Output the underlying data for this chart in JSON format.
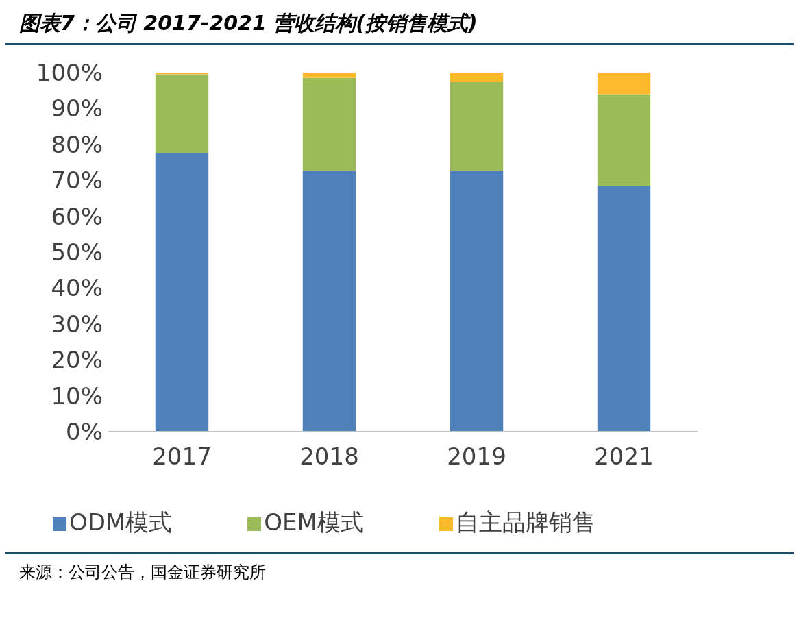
{
  "chart_data": {
    "type": "bar",
    "title": "图表7：公司 2017-2021 营收结构(按销售模式)",
    "categories": [
      "2017",
      "2018",
      "2019",
      "2021"
    ],
    "stacked": true,
    "series": [
      {
        "name": "ODM模式",
        "color": "#4f81bd",
        "values": [
          77.5,
          72.5,
          72.5,
          68.5
        ]
      },
      {
        "name": "OEM模式",
        "color": "#9bbb59",
        "values": [
          22,
          26,
          25,
          25.5
        ]
      },
      {
        "name": "自主品牌销售",
        "color": "#fdb92c",
        "values": [
          0.5,
          1.5,
          2.5,
          6
        ]
      }
    ],
    "ylim": [
      0,
      100
    ],
    "yticks": [
      {
        "value": 0,
        "label": "0%"
      },
      {
        "value": 10,
        "label": "10%"
      },
      {
        "value": 20,
        "label": "20%"
      },
      {
        "value": 30,
        "label": "30%"
      },
      {
        "value": 40,
        "label": "40%"
      },
      {
        "value": 50,
        "label": "50%"
      },
      {
        "value": 60,
        "label": "60%"
      },
      {
        "value": 70,
        "label": "70%"
      },
      {
        "value": 80,
        "label": "80%"
      },
      {
        "value": 90,
        "label": "90%"
      },
      {
        "value": 100,
        "label": "100%"
      }
    ],
    "grid": false,
    "legend": "bottom",
    "annotations": [
      "来源：公司公告，国金证券研究所"
    ]
  }
}
